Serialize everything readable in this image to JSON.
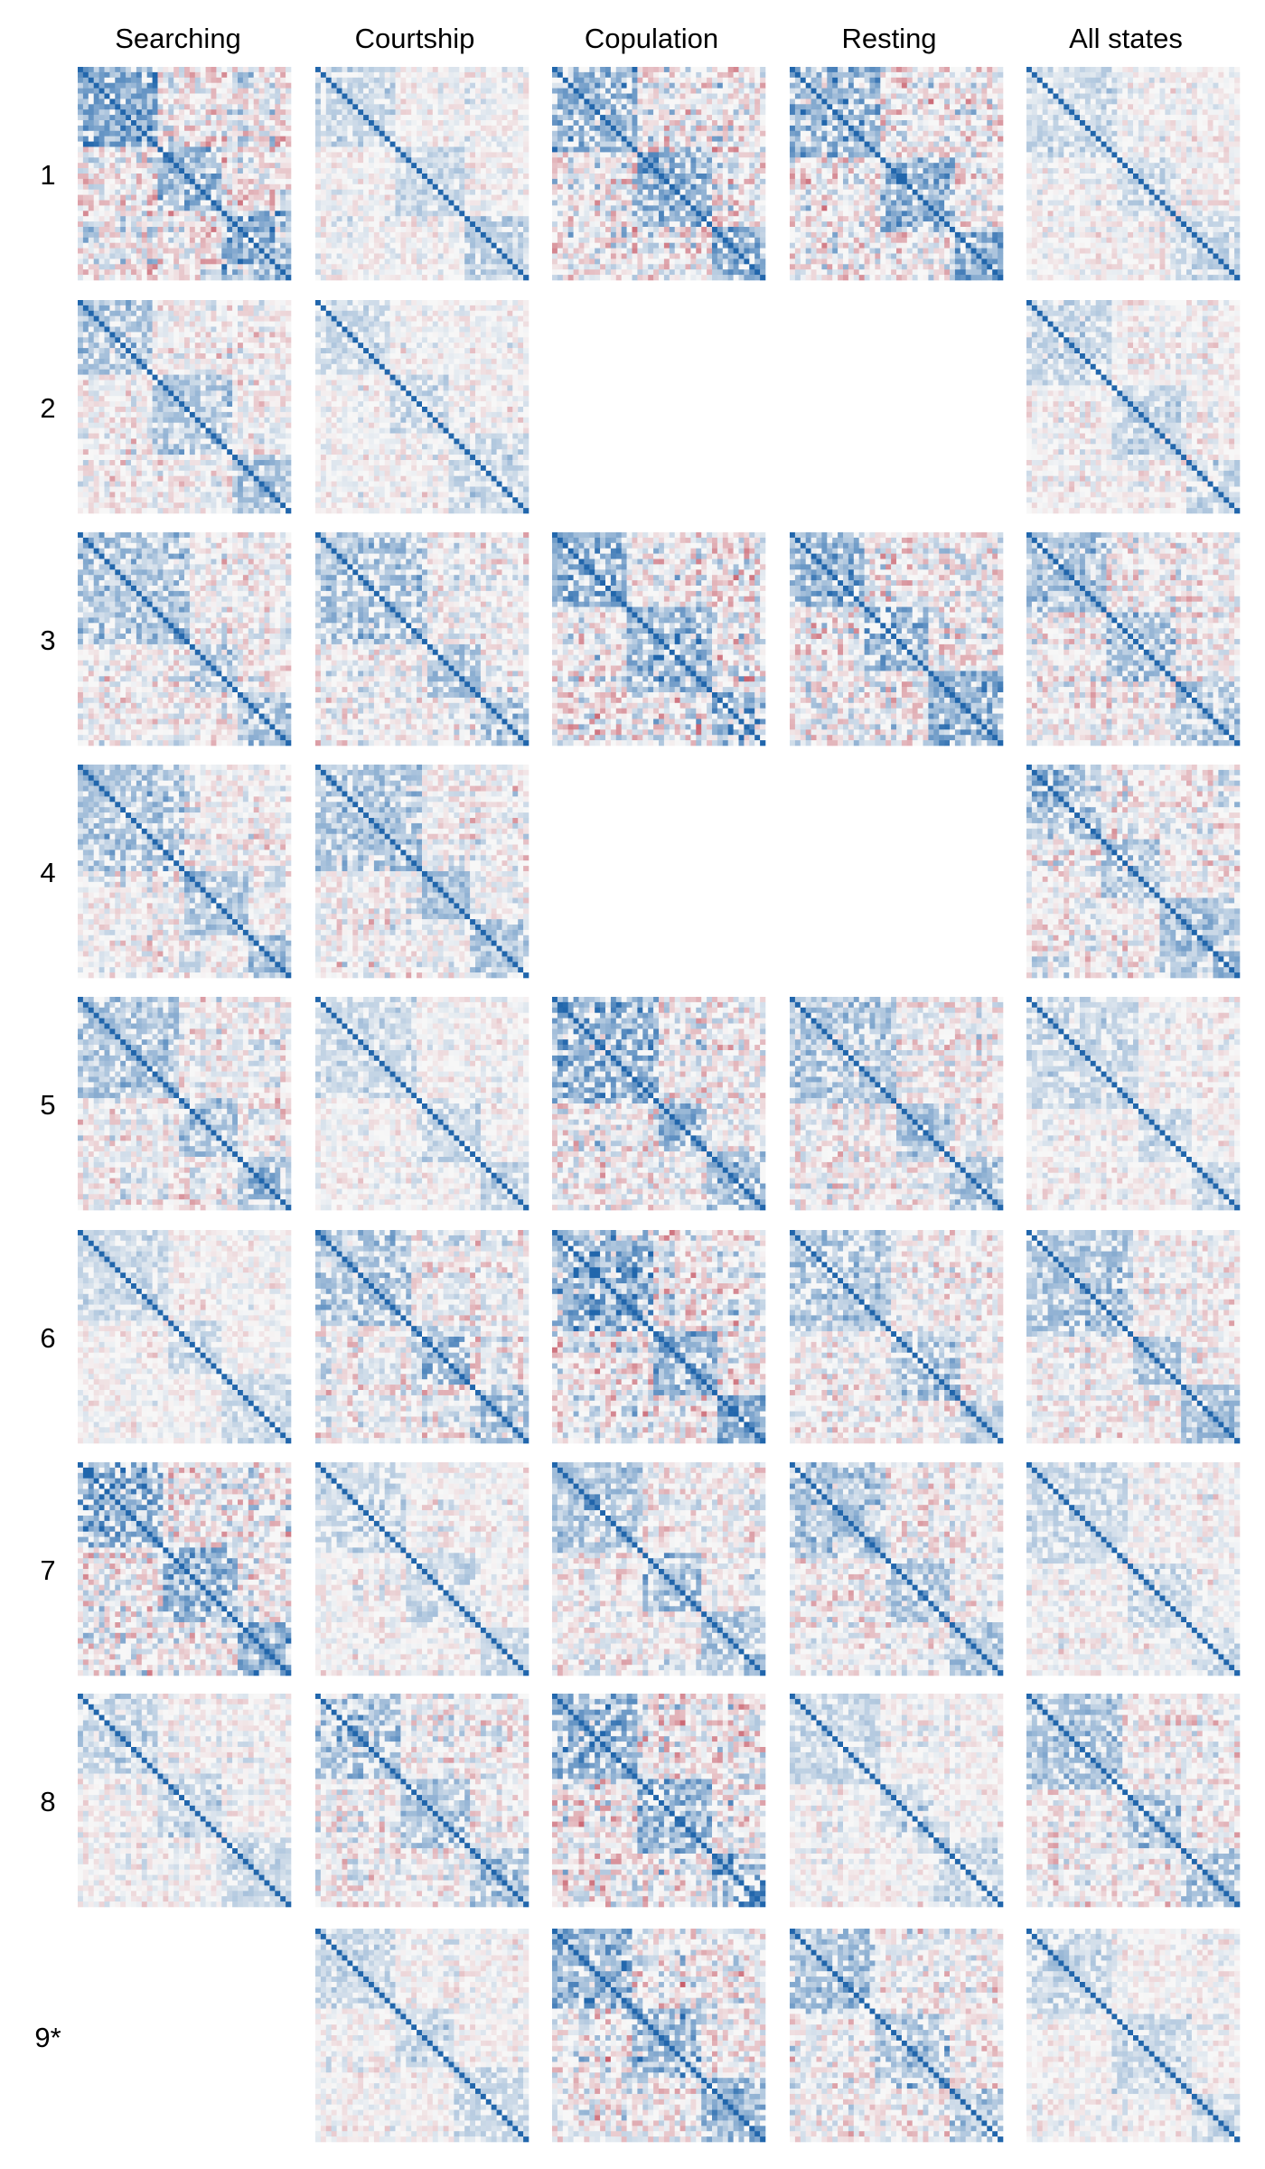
{
  "chart_data": {
    "type": "heatmap",
    "columns": [
      "Searching",
      "Courtship",
      "Copulation",
      "Resting",
      "All states"
    ],
    "rows": [
      "1",
      "2",
      "3",
      "4",
      "5",
      "6",
      "7",
      "8",
      "9*"
    ],
    "panels_present": [
      [
        true,
        true,
        true,
        true,
        true
      ],
      [
        true,
        true,
        false,
        false,
        true
      ],
      [
        true,
        true,
        true,
        true,
        true
      ],
      [
        true,
        true,
        false,
        false,
        true
      ],
      [
        true,
        true,
        true,
        true,
        true
      ],
      [
        true,
        true,
        true,
        true,
        true
      ],
      [
        true,
        true,
        true,
        true,
        true
      ],
      [
        true,
        true,
        true,
        true,
        true
      ],
      [
        false,
        true,
        true,
        true,
        true
      ]
    ],
    "panel_style": [
      [
        "strong",
        "light",
        "strong",
        "strong",
        "light"
      ],
      [
        "medium",
        "light",
        null,
        null,
        "light"
      ],
      [
        "medium",
        "medium",
        "strong",
        "strong",
        "medium"
      ],
      [
        "medium",
        "medium",
        null,
        null,
        "medium"
      ],
      [
        "medium",
        "light",
        "strong",
        "medium",
        "light"
      ],
      [
        "light",
        "medium",
        "strong",
        "medium",
        "medium"
      ],
      [
        "strong",
        "light",
        "medium",
        "medium",
        "light"
      ],
      [
        "light",
        "medium",
        "strong",
        "light",
        "medium"
      ],
      [
        null,
        "light",
        "strong",
        "medium",
        "light"
      ]
    ],
    "colormap": {
      "negative": "#b2182b",
      "zero": "#f7f7f7",
      "positive": "#2166ac"
    },
    "diagonal": "positive",
    "title": "",
    "xlabel": "",
    "ylabel": "",
    "legend": "none",
    "grid": false
  }
}
